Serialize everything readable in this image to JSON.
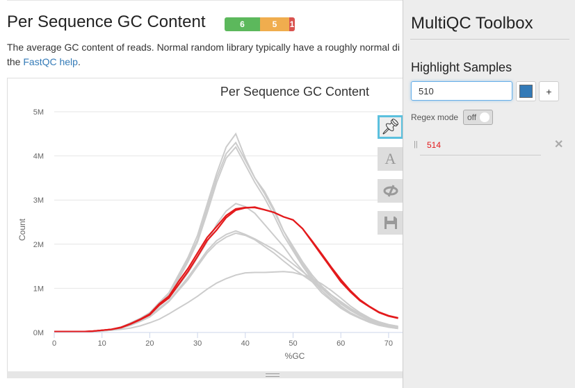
{
  "section": {
    "title": "Per Sequence GC Content",
    "badges": [
      {
        "label": "6",
        "color": "#5cb85c"
      },
      {
        "label": "5",
        "color": "#f0ad4e"
      },
      {
        "label": "1",
        "color": "#d9534f"
      }
    ],
    "description": "The average GC content of reads. Normal random library typically have a roughly normal di",
    "description_line2_pre": "the ",
    "help_link": "FastQC help",
    "description_line2_post": "."
  },
  "plot_toolbar": {
    "buttons": [
      {
        "icon": "pin-icon",
        "active": true
      },
      {
        "icon": "text-A-icon"
      },
      {
        "icon": "eye-slash-icon"
      },
      {
        "icon": "save-icon"
      }
    ]
  },
  "chart_data": {
    "type": "line",
    "title": "Per Sequence GC Content",
    "xlabel": "%GC",
    "ylabel": "Count",
    "xlim": [
      0,
      72
    ],
    "ylim": [
      0,
      5000000
    ],
    "xticks": [
      "0",
      "10",
      "20",
      "30",
      "40",
      "50",
      "60",
      "70"
    ],
    "yticks": [
      "0M",
      "1M",
      "2M",
      "3M",
      "4M",
      "5M"
    ],
    "grid": true,
    "x": [
      0,
      2,
      4,
      6,
      8,
      10,
      12,
      14,
      16,
      18,
      20,
      22,
      24,
      26,
      28,
      30,
      32,
      34,
      36,
      38,
      40,
      42,
      44,
      46,
      48,
      50,
      52,
      54,
      56,
      58,
      60,
      62,
      64,
      66,
      68,
      70,
      72
    ],
    "series": [
      {
        "color": "#cccccc",
        "values_millions": [
          0.02,
          0.02,
          0.02,
          0.02,
          0.03,
          0.05,
          0.07,
          0.12,
          0.22,
          0.32,
          0.45,
          0.68,
          0.9,
          1.3,
          1.7,
          2.2,
          2.9,
          3.6,
          4.2,
          4.5,
          3.95,
          3.5,
          3.2,
          2.8,
          2.3,
          1.95,
          1.6,
          1.3,
          1.05,
          0.85,
          0.65,
          0.5,
          0.38,
          0.28,
          0.2,
          0.15,
          0.12
        ]
      },
      {
        "color": "#cccccc",
        "values_millions": [
          0.02,
          0.02,
          0.02,
          0.02,
          0.03,
          0.05,
          0.07,
          0.12,
          0.2,
          0.3,
          0.42,
          0.65,
          0.88,
          1.25,
          1.65,
          2.1,
          2.8,
          3.5,
          4.05,
          4.3,
          3.9,
          3.5,
          3.15,
          2.75,
          2.3,
          1.9,
          1.55,
          1.25,
          1.0,
          0.8,
          0.6,
          0.45,
          0.34,
          0.25,
          0.18,
          0.13,
          0.1
        ]
      },
      {
        "color": "#cccccc",
        "values_millions": [
          0.02,
          0.02,
          0.02,
          0.02,
          0.03,
          0.05,
          0.07,
          0.12,
          0.2,
          0.3,
          0.42,
          0.62,
          0.85,
          1.2,
          1.6,
          2.05,
          2.7,
          3.4,
          3.95,
          4.2,
          3.8,
          3.4,
          3.05,
          2.65,
          2.2,
          1.85,
          1.5,
          1.2,
          0.95,
          0.75,
          0.57,
          0.43,
          0.32,
          0.23,
          0.16,
          0.12,
          0.09
        ]
      },
      {
        "color": "#cccccc",
        "values_millions": [
          0.02,
          0.02,
          0.02,
          0.02,
          0.03,
          0.04,
          0.06,
          0.1,
          0.18,
          0.28,
          0.4,
          0.6,
          0.78,
          1.05,
          1.35,
          1.7,
          2.05,
          2.45,
          2.75,
          2.92,
          2.85,
          2.7,
          2.45,
          2.2,
          1.95,
          1.65,
          1.4,
          1.15,
          0.9,
          0.72,
          0.55,
          0.42,
          0.32,
          0.24,
          0.17,
          0.12,
          0.09
        ]
      },
      {
        "color": "#cccccc",
        "values_millions": [
          0.02,
          0.02,
          0.02,
          0.02,
          0.03,
          0.04,
          0.06,
          0.1,
          0.17,
          0.26,
          0.37,
          0.55,
          0.72,
          0.98,
          1.25,
          1.55,
          1.85,
          2.08,
          2.22,
          2.3,
          2.22,
          2.12,
          2.0,
          1.88,
          1.72,
          1.55,
          1.38,
          1.2,
          1.02,
          0.85,
          0.68,
          0.52,
          0.4,
          0.3,
          0.22,
          0.16,
          0.12
        ]
      },
      {
        "color": "#cccccc",
        "values_millions": [
          0.02,
          0.02,
          0.02,
          0.02,
          0.03,
          0.04,
          0.06,
          0.1,
          0.16,
          0.25,
          0.35,
          0.52,
          0.7,
          0.95,
          1.2,
          1.5,
          1.8,
          2.02,
          2.16,
          2.25,
          2.2,
          2.1,
          1.95,
          1.8,
          1.62,
          1.45,
          1.3,
          1.15,
          1.0,
          0.85,
          0.7,
          0.55,
          0.42,
          0.32,
          0.24,
          0.18,
          0.14
        ]
      },
      {
        "color": "#cccccc",
        "values_millions": [
          0.01,
          0.01,
          0.01,
          0.01,
          0.02,
          0.03,
          0.05,
          0.07,
          0.1,
          0.15,
          0.22,
          0.3,
          0.42,
          0.55,
          0.68,
          0.82,
          0.98,
          1.12,
          1.22,
          1.3,
          1.35,
          1.36,
          1.36,
          1.37,
          1.38,
          1.36,
          1.3,
          1.22,
          1.1,
          0.95,
          0.78,
          0.6,
          0.45,
          0.33,
          0.22,
          0.15,
          0.1
        ]
      },
      {
        "color": "#e31a1c",
        "values_millions": [
          0.02,
          0.02,
          0.02,
          0.02,
          0.03,
          0.05,
          0.07,
          0.12,
          0.2,
          0.3,
          0.42,
          0.65,
          0.82,
          1.15,
          1.45,
          1.8,
          2.15,
          2.4,
          2.65,
          2.8,
          2.83,
          2.83,
          2.78,
          2.72,
          2.62,
          2.55,
          2.35,
          2.05,
          1.75,
          1.45,
          1.15,
          0.92,
          0.72,
          0.58,
          0.45,
          0.37,
          0.32
        ]
      },
      {
        "color": "#e31a1c",
        "values_millions": [
          0.02,
          0.02,
          0.02,
          0.02,
          0.03,
          0.05,
          0.07,
          0.11,
          0.19,
          0.29,
          0.4,
          0.62,
          0.78,
          1.08,
          1.38,
          1.72,
          2.08,
          2.32,
          2.6,
          2.77,
          2.82,
          2.84,
          2.78,
          2.72,
          2.62,
          2.55,
          2.35,
          2.07,
          1.78,
          1.48,
          1.2,
          0.95,
          0.74,
          0.59,
          0.46,
          0.38,
          0.33
        ]
      }
    ]
  },
  "toolbox": {
    "title": "MultiQC Toolbox",
    "section": "Highlight Samples",
    "input_value": "510",
    "color": "#337ab7",
    "add_label": "+",
    "regex_label": "Regex mode",
    "regex_state": "off",
    "highlights": [
      {
        "pattern": "514",
        "color": "#e31a1c"
      }
    ]
  }
}
